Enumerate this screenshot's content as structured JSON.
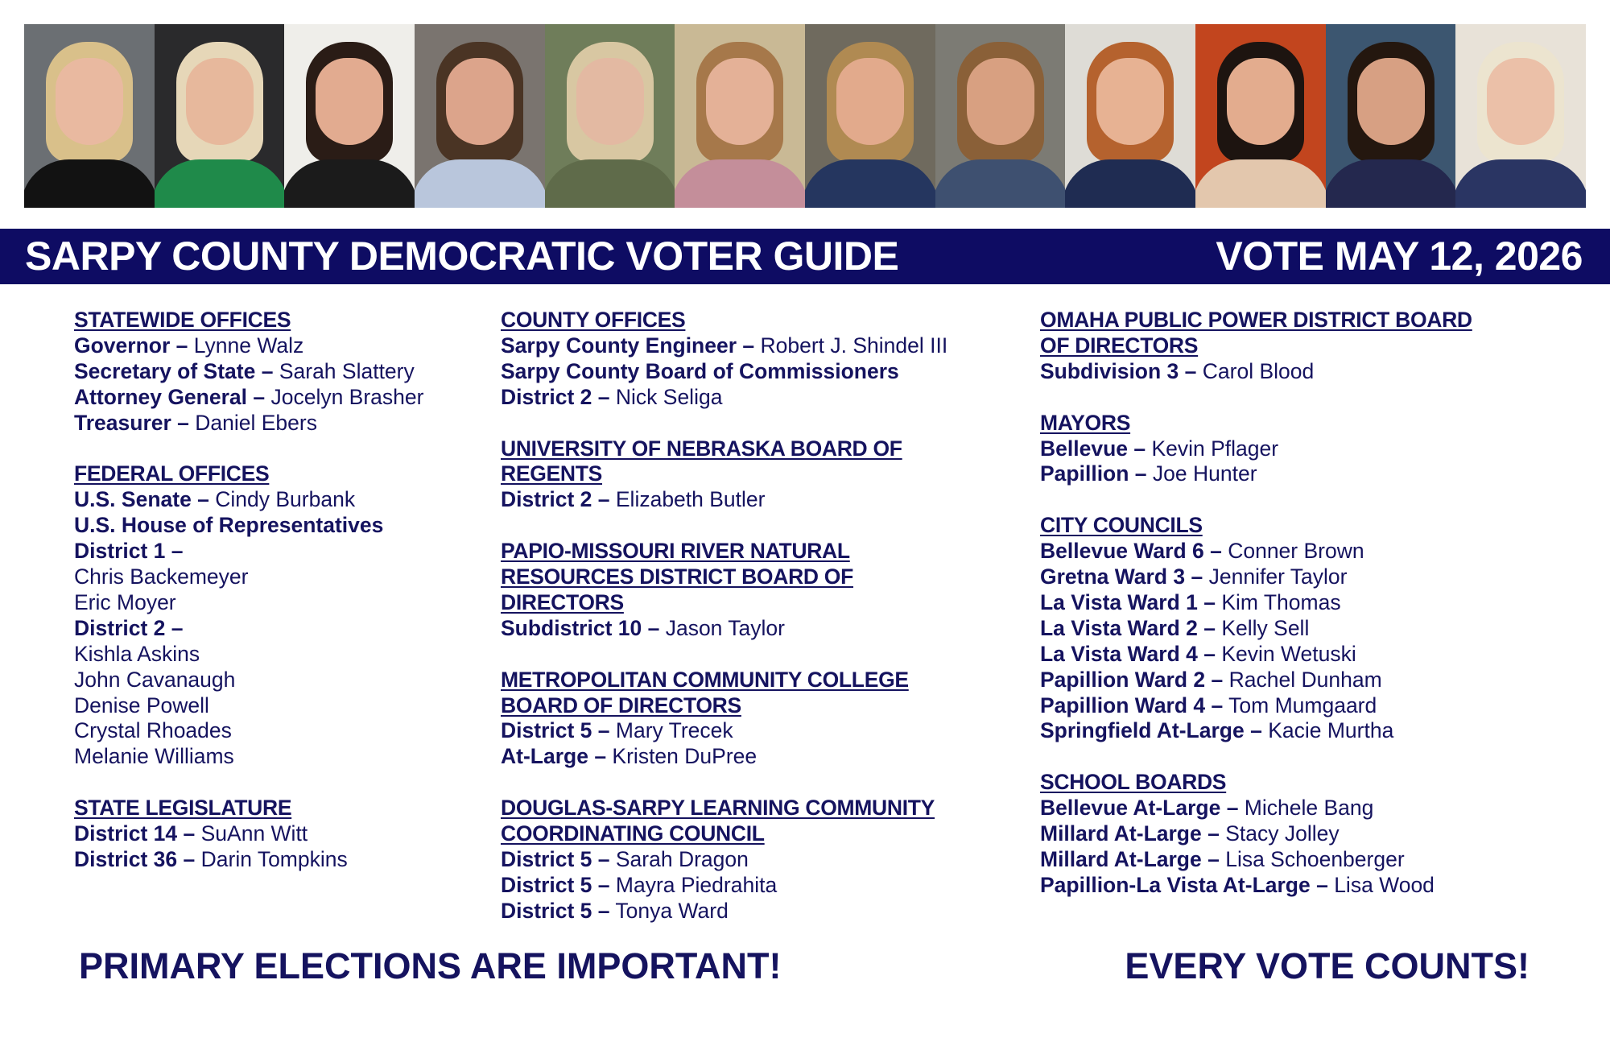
{
  "photo_strip": [
    {
      "bg": "#6b6f73",
      "hair": "#d9c08a",
      "skin": "#e9b9a0",
      "body": "#121212"
    },
    {
      "bg": "#2a2a2c",
      "hair": "#e6d7b8",
      "skin": "#e7b89c",
      "body": "#1f8a4a"
    },
    {
      "bg": "#efeeea",
      "hair": "#2a1c16",
      "skin": "#e2ab90",
      "body": "#1b1b1b"
    },
    {
      "bg": "#7a746f",
      "hair": "#4a3424",
      "skin": "#dca48b",
      "body": "#b9c6dc"
    },
    {
      "bg": "#6f7d5a",
      "hair": "#d8c7a2",
      "skin": "#e3b9a2",
      "body": "#5f6b4a"
    },
    {
      "bg": "#c9b995",
      "hair": "#a6784a",
      "skin": "#e4b197",
      "body": "#c48e9a"
    },
    {
      "bg": "#6f6a5e",
      "hair": "#b08a52",
      "skin": "#e2aa8c",
      "body": "#25365f"
    },
    {
      "bg": "#7c7b74",
      "hair": "#8a6038",
      "skin": "#d8a081",
      "body": "#3e5070"
    },
    {
      "bg": "#dedcd6",
      "hair": "#b5622e",
      "skin": "#e7b293",
      "body": "#1f2c52"
    },
    {
      "bg": "#c2451e",
      "hair": "#1d1410",
      "skin": "#e3ac8e",
      "body": "#e3c7ad"
    },
    {
      "bg": "#3c5670",
      "hair": "#24170f",
      "skin": "#d7a083",
      "body": "#24284e"
    },
    {
      "bg": "#e8e2d8",
      "hair": "#ece4cf",
      "skin": "#ebc0a8",
      "body": "#2a3563"
    }
  ],
  "banner": {
    "title": "SARPY COUNTY DEMOCRATIC VOTER GUIDE",
    "date": "VOTE MAY 12, 2026",
    "color": "#0e0c63"
  },
  "columns": [
    [
      {
        "heading": [
          "STATEWIDE OFFICES"
        ],
        "lines": [
          {
            "label": "Governor –",
            "name": " Lynne Walz"
          },
          {
            "label": "Secretary of State –",
            "name": " Sarah Slattery"
          },
          {
            "label": "Attorney General –",
            "name": " Jocelyn Brasher"
          },
          {
            "label": "Treasurer –",
            "name": " Daniel Ebers"
          }
        ]
      },
      {
        "heading": [
          "FEDERAL OFFICES"
        ],
        "lines": [
          {
            "label": "U.S. Senate –",
            "name": " Cindy Burbank"
          },
          {
            "label": "U.S. House of Representatives",
            "name": ""
          },
          {
            "label": "District 1 –",
            "name": ""
          },
          {
            "label": "",
            "name": "Chris Backemeyer"
          },
          {
            "label": "",
            "name": "Eric Moyer"
          },
          {
            "label": "District 2 –",
            "name": ""
          },
          {
            "label": "",
            "name": "Kishla Askins"
          },
          {
            "label": "",
            "name": "John Cavanaugh"
          },
          {
            "label": "",
            "name": "Denise Powell"
          },
          {
            "label": "",
            "name": "Crystal Rhoades"
          },
          {
            "label": "",
            "name": "Melanie Williams"
          }
        ]
      },
      {
        "heading": [
          "STATE LEGISLATURE"
        ],
        "lines": [
          {
            "label": "District 14 –",
            "name": " SuAnn Witt"
          },
          {
            "label": "District 36 –",
            "name": " Darin Tompkins"
          }
        ]
      }
    ],
    [
      {
        "heading": [
          "COUNTY OFFICES"
        ],
        "lines": [
          {
            "label": "Sarpy County Engineer –",
            "name": " Robert J. Shindel III"
          },
          {
            "label": "Sarpy County Board of Commissioners",
            "name": ""
          },
          {
            "label": "District 2 –",
            "name": " Nick Seliga"
          }
        ]
      },
      {
        "heading": [
          "UNIVERSITY OF NEBRASKA BOARD OF",
          "REGENTS"
        ],
        "lines": [
          {
            "label": "District 2 –",
            "name": " Elizabeth Butler"
          }
        ]
      },
      {
        "heading": [
          "PAPIO-MISSOURI RIVER NATURAL",
          "RESOURCES DISTRICT BOARD OF",
          "DIRECTORS"
        ],
        "lines": [
          {
            "label": "Subdistrict 10 –",
            "name": " Jason Taylor"
          }
        ]
      },
      {
        "heading": [
          "METROPOLITAN COMMUNITY COLLEGE",
          "BOARD OF DIRECTORS"
        ],
        "lines": [
          {
            "label": "District 5 –",
            "name": " Mary Trecek"
          },
          {
            "label": "At-Large –",
            "name": " Kristen DuPree"
          }
        ]
      },
      {
        "heading": [
          "DOUGLAS-SARPY LEARNING COMMUNITY",
          "COORDINATING COUNCIL"
        ],
        "lines": [
          {
            "label": "District 5 –",
            "name": " Sarah Dragon"
          },
          {
            "label": "District 5 –",
            "name": " Mayra Piedrahita"
          },
          {
            "label": "District 5 –",
            "name": " Tonya Ward"
          }
        ]
      }
    ],
    [
      {
        "heading": [
          "OMAHA PUBLIC POWER DISTRICT BOARD",
          "OF DIRECTORS"
        ],
        "lines": [
          {
            "label": "Subdivision 3 –",
            "name": " Carol Blood"
          }
        ]
      },
      {
        "heading": [
          "MAYORS"
        ],
        "lines": [
          {
            "label": "Bellevue –",
            "name": " Kevin Pflager"
          },
          {
            "label": "Papillion –",
            "name": " Joe Hunter"
          }
        ]
      },
      {
        "heading": [
          "CITY COUNCILS"
        ],
        "lines": [
          {
            "label": "Bellevue Ward 6 –",
            "name": " Conner Brown"
          },
          {
            "label": "Gretna Ward 3 –",
            "name": " Jennifer Taylor"
          },
          {
            "label": "La Vista Ward 1 –",
            "name": " Kim Thomas"
          },
          {
            "label": "La Vista Ward 2 –",
            "name": " Kelly Sell"
          },
          {
            "label": "La Vista Ward 4 –",
            "name": " Kevin Wetuski"
          },
          {
            "label": "Papillion Ward 2 –",
            "name": " Rachel Dunham"
          },
          {
            "label": "Papillion Ward 4 –",
            "name": " Tom Mumgaard"
          },
          {
            "label": "Springfield At-Large –",
            "name": " Kacie Murtha"
          }
        ]
      },
      {
        "heading": [
          "SCHOOL BOARDS"
        ],
        "lines": [
          {
            "label": "Bellevue At-Large –",
            "name": " Michele Bang"
          },
          {
            "label": "Millard At-Large –",
            "name": " Stacy Jolley"
          },
          {
            "label": "Millard At-Large –",
            "name": " Lisa Schoenberger"
          },
          {
            "label": "Papillion-La Vista At-Large –",
            "name": " Lisa Wood"
          }
        ]
      }
    ]
  ],
  "footer": {
    "left": "PRIMARY ELECTIONS ARE IMPORTANT!",
    "right": "EVERY VOTE COUNTS!"
  }
}
